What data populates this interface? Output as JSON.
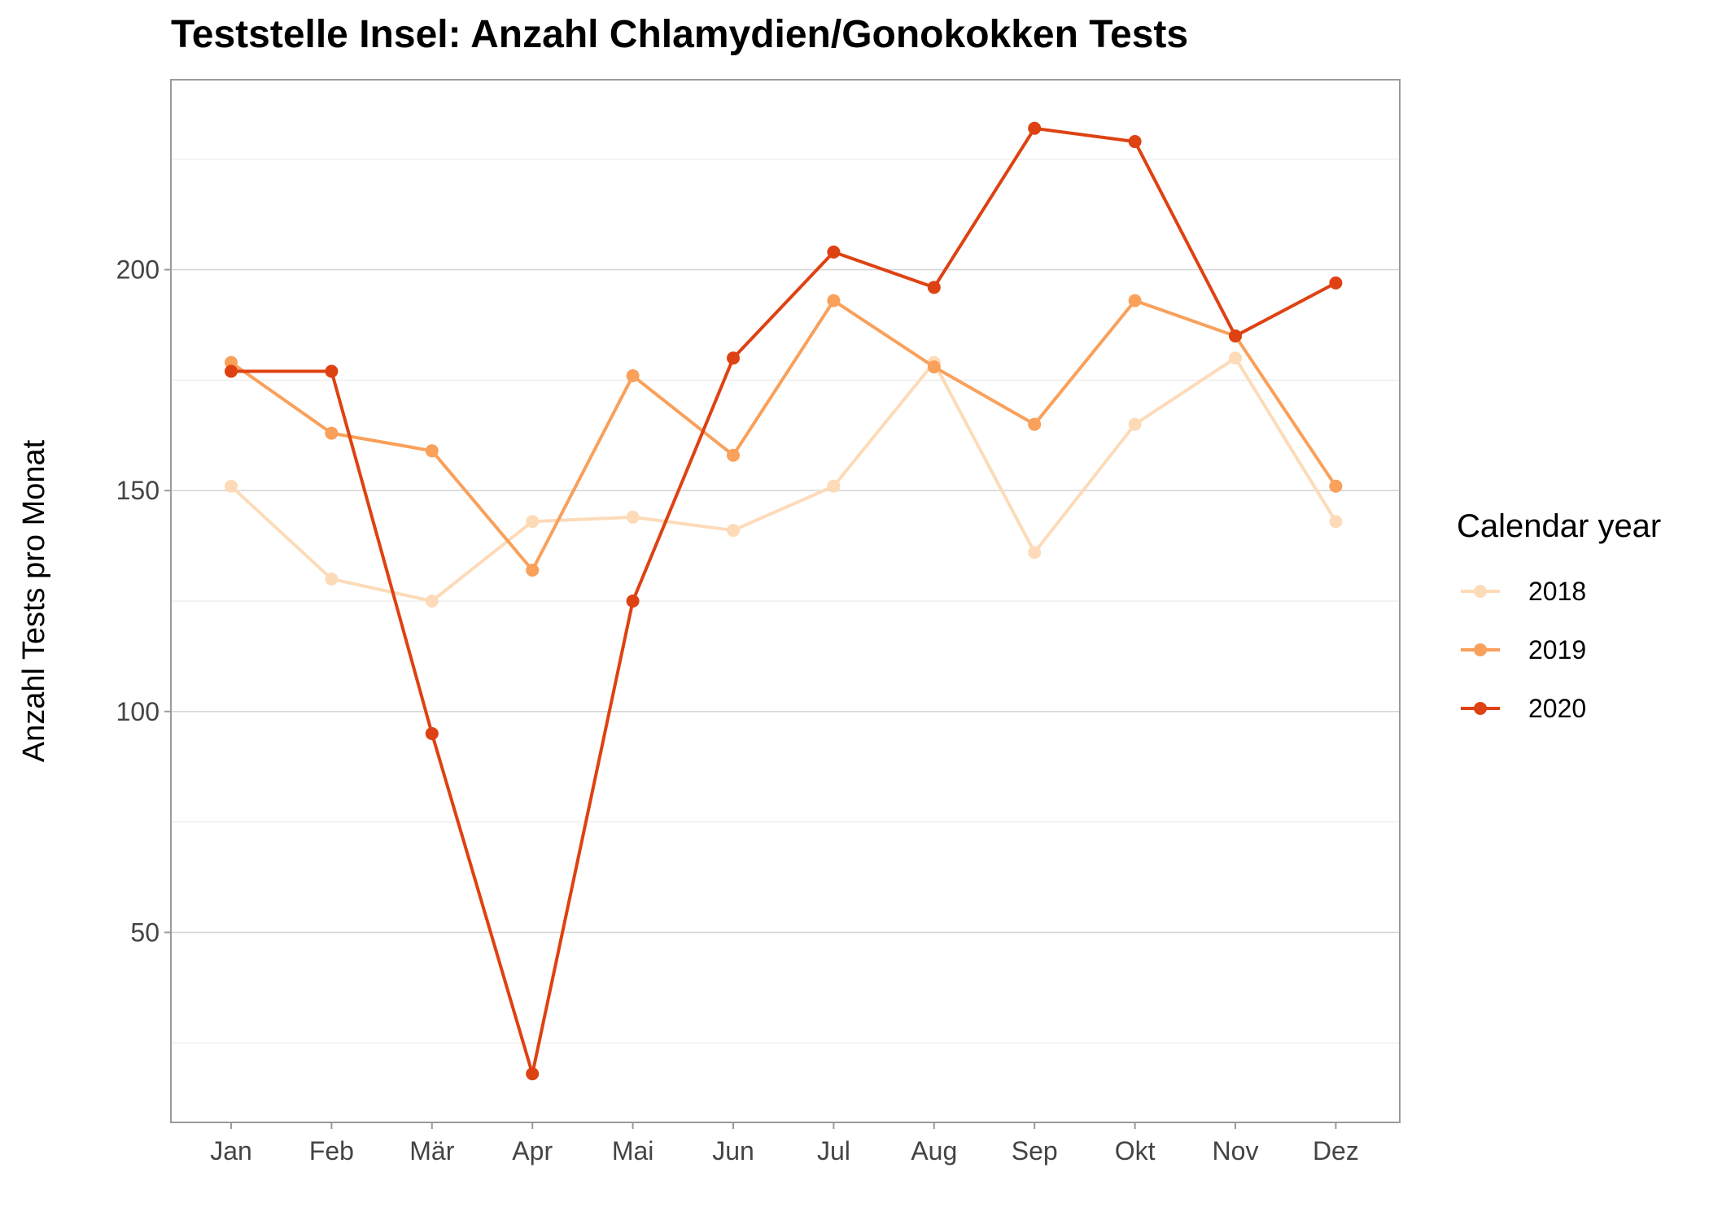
{
  "chart_data": {
    "type": "line",
    "title": "Teststelle Insel: Anzahl Chlamydien/Gonokokken Tests",
    "xlabel": "",
    "ylabel": "Anzahl Tests pro Monat",
    "categories": [
      "Jan",
      "Feb",
      "Mär",
      "Apr",
      "Mai",
      "Jun",
      "Jul",
      "Aug",
      "Sep",
      "Okt",
      "Nov",
      "Dez"
    ],
    "ylim": [
      7,
      243
    ],
    "yticks": [
      50,
      100,
      150,
      200
    ],
    "grid": true,
    "legend": {
      "title": "Calendar year",
      "position": "right"
    },
    "series": [
      {
        "name": "2018",
        "color": "#fddbb8",
        "values": [
          151,
          130,
          125,
          143,
          144,
          141,
          151,
          179,
          136,
          165,
          180,
          143
        ]
      },
      {
        "name": "2019",
        "color": "#f9a05a",
        "values": [
          179,
          163,
          159,
          132,
          176,
          158,
          193,
          178,
          165,
          193,
          185,
          151
        ]
      },
      {
        "name": "2020",
        "color": "#de4212",
        "values": [
          177,
          177,
          95,
          18,
          125,
          180,
          204,
          196,
          232,
          229,
          185,
          197
        ]
      }
    ]
  }
}
